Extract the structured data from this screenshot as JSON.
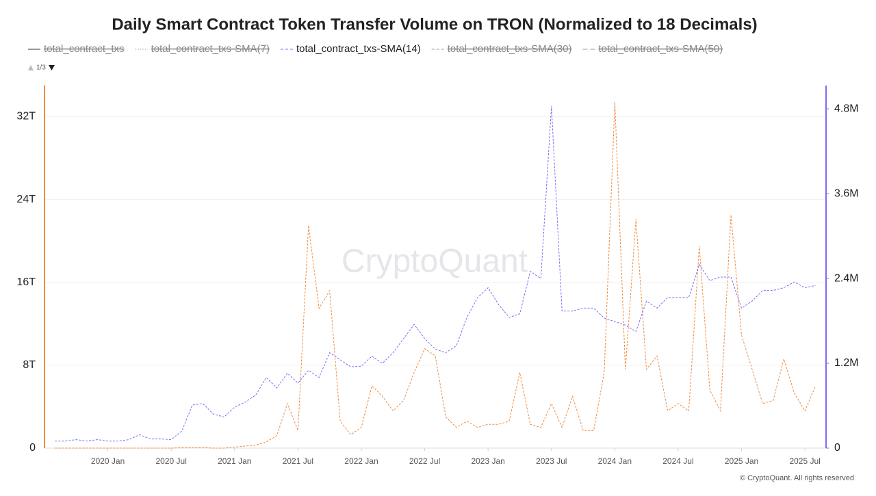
{
  "chart_data": {
    "type": "line",
    "title": "Daily Smart Contract Token Transfer Volume on TRON (Normalized to 18 Decimals)",
    "legend": [
      {
        "name": "total_contract_txs",
        "color": "#555555",
        "dash": "solid",
        "hidden": true
      },
      {
        "name": "total_contract_txs-SMA(7)",
        "color": "#888888",
        "dash": "dotted",
        "hidden": true
      },
      {
        "name": "total_contract_txs-SMA(14)",
        "color": "#7b6cf6",
        "dash": "dashed",
        "hidden": false
      },
      {
        "name": "total_contract_txs-SMA(30)",
        "color": "#888888",
        "dash": "dashed",
        "hidden": true
      },
      {
        "name": "total_contract_txs-SMA(50)",
        "color": "#888888",
        "dash": "longdash",
        "hidden": true
      }
    ],
    "legend_page": "1/3",
    "watermark": "CryptoQuant",
    "copyright": "© CryptoQuant. All rights reserved",
    "x": [
      "2019 Aug",
      "2019 Sep",
      "2019 Oct",
      "2019 Nov",
      "2019 Dec",
      "2020 Jan",
      "2020 Feb",
      "2020 Mar",
      "2020 Apr",
      "2020 May",
      "2020 Jun",
      "2020 Jul",
      "2020 Aug",
      "2020 Sep",
      "2020 Oct",
      "2020 Nov",
      "2020 Dec",
      "2021 Jan",
      "2021 Feb",
      "2021 Mar",
      "2021 Apr",
      "2021 May",
      "2021 Jun",
      "2021 Jul",
      "2021 Aug",
      "2021 Sep",
      "2021 Oct",
      "2021 Nov",
      "2021 Dec",
      "2022 Jan",
      "2022 Feb",
      "2022 Mar",
      "2022 Apr",
      "2022 May",
      "2022 Jun",
      "2022 Jul",
      "2022 Aug",
      "2022 Sep",
      "2022 Oct",
      "2022 Nov",
      "2022 Dec",
      "2023 Jan",
      "2023 Feb",
      "2023 Mar",
      "2023 Apr",
      "2023 May",
      "2023 Jun",
      "2023 Jul",
      "2023 Aug",
      "2023 Sep",
      "2023 Oct",
      "2023 Nov",
      "2023 Dec",
      "2024 Jan",
      "2024 Feb",
      "2024 Mar",
      "2024 Apr",
      "2024 May",
      "2024 Jun",
      "2024 Jul",
      "2024 Aug",
      "2024 Sep",
      "2024 Oct",
      "2024 Nov",
      "2024 Dec",
      "2025 Jan",
      "2025 Feb",
      "2025 Mar",
      "2025 Apr",
      "2025 May",
      "2025 Jun",
      "2025 Jul",
      "2025 Aug"
    ],
    "xlim": [
      "2019 Jul",
      "2025 Sep"
    ],
    "xticks": [
      "2020 Jan",
      "2020 Jul",
      "2021 Jan",
      "2021 Jul",
      "2022 Jan",
      "2022 Jul",
      "2023 Jan",
      "2023 Jul",
      "2024 Jan",
      "2024 Jul",
      "2025 Jan",
      "2025 Jul"
    ],
    "series": [
      {
        "color": "#f08a3c",
        "axis": "y",
        "values": [
          0,
          0,
          0,
          0,
          0,
          0,
          0,
          0,
          0,
          0,
          0,
          0,
          0.05,
          0.05,
          0.05,
          0,
          0,
          0.1,
          0.2,
          0.3,
          0.6,
          1.2,
          4.3,
          1.7,
          21.5,
          13.5,
          15.2,
          2.6,
          1.3,
          2,
          6,
          5,
          3.6,
          4.6,
          7.3,
          9.6,
          8.9,
          3,
          2,
          2.6,
          2,
          2.3,
          2.3,
          2.6,
          7.3,
          2.3,
          2,
          4.3,
          2,
          5,
          1.7,
          1.7,
          7.3,
          33.4,
          7.6,
          22.1,
          7.6,
          8.9,
          3.6,
          4.3,
          3.6,
          19.5,
          5.6,
          3.6,
          22.5,
          10.9,
          7.6,
          4.3,
          4.6,
          8.6,
          5.3,
          3.6,
          6
        ]
      },
      {
        "color": "#7b6cf6",
        "axis": "y2",
        "values": [
          0.1,
          0.1,
          0.12,
          0.1,
          0.12,
          0.1,
          0.1,
          0.12,
          0.19,
          0.13,
          0.13,
          0.12,
          0.24,
          0.61,
          0.63,
          0.48,
          0.44,
          0.58,
          0.65,
          0.75,
          1.0,
          0.85,
          1.06,
          0.92,
          1.1,
          1.0,
          1.35,
          1.25,
          1.15,
          1.16,
          1.3,
          1.2,
          1.35,
          1.55,
          1.75,
          1.55,
          1.4,
          1.35,
          1.45,
          1.85,
          2.13,
          2.27,
          2.03,
          1.85,
          1.9,
          2.5,
          2.4,
          4.84,
          1.94,
          1.94,
          1.98,
          1.98,
          1.84,
          1.79,
          1.74,
          1.65,
          2.08,
          1.98,
          2.13,
          2.13,
          2.13,
          2.6,
          2.37,
          2.42,
          2.42,
          1.98,
          2.08,
          2.23,
          2.23,
          2.27,
          2.35,
          2.27,
          2.3
        ]
      }
    ],
    "ylim": [
      0,
      35
    ],
    "yticks": [
      0,
      {
        "value": 8,
        "label": "8T"
      },
      {
        "value": 16,
        "label": "16T"
      },
      {
        "value": 24,
        "label": "24T"
      },
      {
        "value": 32,
        "label": "32T"
      }
    ],
    "y2lim": [
      0,
      5.13
    ],
    "y2ticks": [
      0,
      {
        "value": 1.2,
        "label": "1.2M"
      },
      {
        "value": 2.4,
        "label": "2.4M"
      },
      {
        "value": 3.6,
        "label": "3.6M"
      },
      {
        "value": 4.8,
        "label": "4.8M"
      }
    ],
    "grid": true
  }
}
